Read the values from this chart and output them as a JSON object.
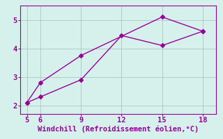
{
  "line1_x": [
    5,
    6,
    9,
    15,
    18
  ],
  "line1_y": [
    2.1,
    2.8,
    3.75,
    5.1,
    4.6
  ],
  "line2_x": [
    5,
    6,
    9,
    12,
    15,
    18
  ],
  "line2_y": [
    2.1,
    2.3,
    2.9,
    4.45,
    4.1,
    4.6
  ],
  "color": "#990099",
  "bg_color": "#d6f0ec",
  "xlabel": "Windchill (Refroidissement éolien,°C)",
  "xticks": [
    5,
    6,
    9,
    12,
    15,
    18
  ],
  "yticks": [
    2,
    3,
    4,
    5
  ],
  "xlim": [
    4.5,
    19.0
  ],
  "ylim": [
    1.7,
    5.5
  ],
  "xlabel_fontsize": 7.5,
  "tick_fontsize": 7.5,
  "line_width": 1.0,
  "marker_size": 3.0
}
